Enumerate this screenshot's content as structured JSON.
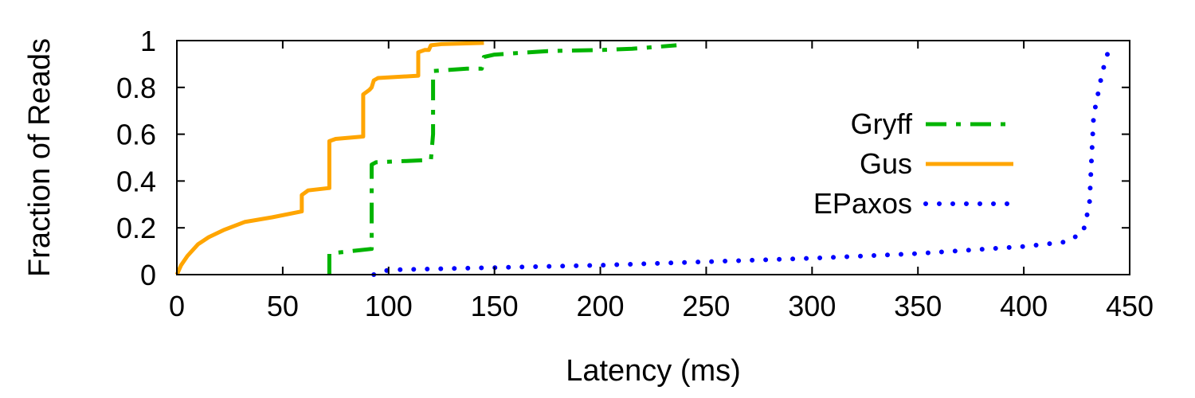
{
  "chart_data": {
    "type": "line",
    "title": "",
    "xlabel": "Latency (ms)",
    "ylabel": "Fraction of Reads",
    "xlim": [
      0,
      450
    ],
    "ylim": [
      0,
      1
    ],
    "xticks": [
      "0",
      "50",
      "100",
      "150",
      "200",
      "250",
      "300",
      "350",
      "400",
      "450"
    ],
    "yticks": [
      "0",
      "0.2",
      "0.4",
      "0.6",
      "0.8",
      "1"
    ],
    "grid": false,
    "legend_position": "right",
    "series": [
      {
        "name": "Gryff",
        "color": "#00b400",
        "style": "dash-dot",
        "points": [
          [
            72,
            0
          ],
          [
            72,
            0.09
          ],
          [
            92,
            0.11
          ],
          [
            92,
            0.47
          ],
          [
            94,
            0.48
          ],
          [
            120,
            0.49
          ],
          [
            121,
            0.6
          ],
          [
            121,
            0.87
          ],
          [
            137,
            0.88
          ],
          [
            144,
            0.88
          ],
          [
            145,
            0.93
          ],
          [
            150,
            0.94
          ],
          [
            175,
            0.955
          ],
          [
            200,
            0.96
          ],
          [
            215,
            0.965
          ],
          [
            236,
            0.98
          ]
        ]
      },
      {
        "name": "Gus",
        "color": "#ffa500",
        "style": "solid",
        "points": [
          [
            0,
            0
          ],
          [
            2,
            0.04
          ],
          [
            5,
            0.08
          ],
          [
            10,
            0.13
          ],
          [
            15,
            0.16
          ],
          [
            22,
            0.19
          ],
          [
            32,
            0.225
          ],
          [
            45,
            0.245
          ],
          [
            59,
            0.27
          ],
          [
            59,
            0.34
          ],
          [
            62,
            0.36
          ],
          [
            72,
            0.37
          ],
          [
            72,
            0.57
          ],
          [
            75,
            0.58
          ],
          [
            88,
            0.59
          ],
          [
            88,
            0.77
          ],
          [
            91,
            0.79
          ],
          [
            92,
            0.8
          ],
          [
            93,
            0.83
          ],
          [
            95,
            0.84
          ],
          [
            114,
            0.85
          ],
          [
            114,
            0.95
          ],
          [
            117,
            0.96
          ],
          [
            119,
            0.96
          ],
          [
            120,
            0.98
          ],
          [
            125,
            0.985
          ],
          [
            145,
            0.99
          ]
        ]
      },
      {
        "name": "EPaxos",
        "color": "#0000ff",
        "style": "dotted",
        "points": [
          [
            93,
            0
          ],
          [
            100,
            0.02
          ],
          [
            150,
            0.03
          ],
          [
            200,
            0.04
          ],
          [
            250,
            0.055
          ],
          [
            300,
            0.07
          ],
          [
            350,
            0.09
          ],
          [
            400,
            0.12
          ],
          [
            420,
            0.14
          ],
          [
            428,
            0.18
          ],
          [
            431,
            0.3
          ],
          [
            432,
            0.5
          ],
          [
            433,
            0.68
          ],
          [
            435,
            0.77
          ],
          [
            437,
            0.86
          ],
          [
            439,
            0.93
          ],
          [
            441,
            0.98
          ]
        ]
      }
    ]
  }
}
